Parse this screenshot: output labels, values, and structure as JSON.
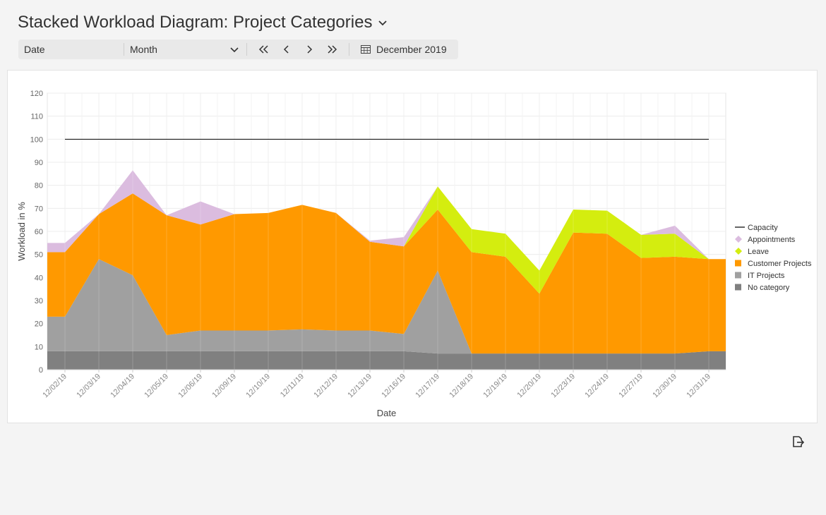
{
  "header": {
    "title": "Stacked Workload Diagram: Project Categories"
  },
  "toolbar": {
    "axis_field": "Date",
    "granularity": "Month",
    "period_label": "December 2019"
  },
  "colors": {
    "no_category": "#808080",
    "it_projects": "#a0a0a0",
    "customer_projects": "#ff9900",
    "leave": "#d4ed0f",
    "appointments": "#dbbcdf",
    "capacity": "#000000"
  },
  "chart_data": {
    "type": "area",
    "stacked": true,
    "xlabel": "Date",
    "ylabel": "Workload in %",
    "ylim": [
      0,
      120
    ],
    "yticks": [
      0,
      10,
      20,
      30,
      40,
      50,
      60,
      70,
      80,
      90,
      100,
      110,
      120
    ],
    "grid": true,
    "legend_position": "right",
    "categories": [
      "12/02/19",
      "12/03/19",
      "12/04/19",
      "12/05/19",
      "12/06/19",
      "12/09/19",
      "12/10/19",
      "12/11/19",
      "12/12/19",
      "12/13/19",
      "12/16/19",
      "12/17/19",
      "12/18/19",
      "12/19/19",
      "12/20/19",
      "12/23/19",
      "12/24/19",
      "12/27/19",
      "12/30/19",
      "12/31/19"
    ],
    "series": [
      {
        "name": "No category",
        "values": [
          8,
          8,
          8,
          8,
          8,
          8,
          8,
          8,
          8,
          8,
          8,
          7,
          7,
          7,
          7,
          7,
          7,
          7,
          7,
          8
        ]
      },
      {
        "name": "IT Projects",
        "values": [
          15,
          40,
          33,
          7,
          9,
          9,
          9,
          9.5,
          9,
          9,
          7.5,
          36,
          0,
          0,
          0,
          0,
          0,
          0,
          0,
          0
        ]
      },
      {
        "name": "Customer Projects",
        "values": [
          28,
          19.5,
          35.5,
          52,
          46,
          50.5,
          51,
          54,
          51,
          38.5,
          38,
          26.5,
          44,
          42,
          26,
          52.5,
          52,
          41.5,
          42,
          40
        ]
      },
      {
        "name": "Leave",
        "values": [
          0,
          0,
          0,
          0,
          0,
          0,
          0,
          0,
          0,
          0,
          0,
          10,
          10,
          10,
          10,
          10,
          10,
          10,
          10,
          0
        ]
      },
      {
        "name": "Appointments",
        "values": [
          4,
          0,
          10,
          0,
          10,
          0,
          0,
          0,
          0,
          0.5,
          4,
          0,
          0,
          0,
          0,
          0,
          0,
          0,
          3.5,
          0
        ]
      }
    ],
    "capacity": {
      "name": "Capacity",
      "value": 100
    },
    "legend": [
      "Capacity",
      "Appointments",
      "Leave",
      "Customer Projects",
      "IT Projects",
      "No category"
    ]
  }
}
